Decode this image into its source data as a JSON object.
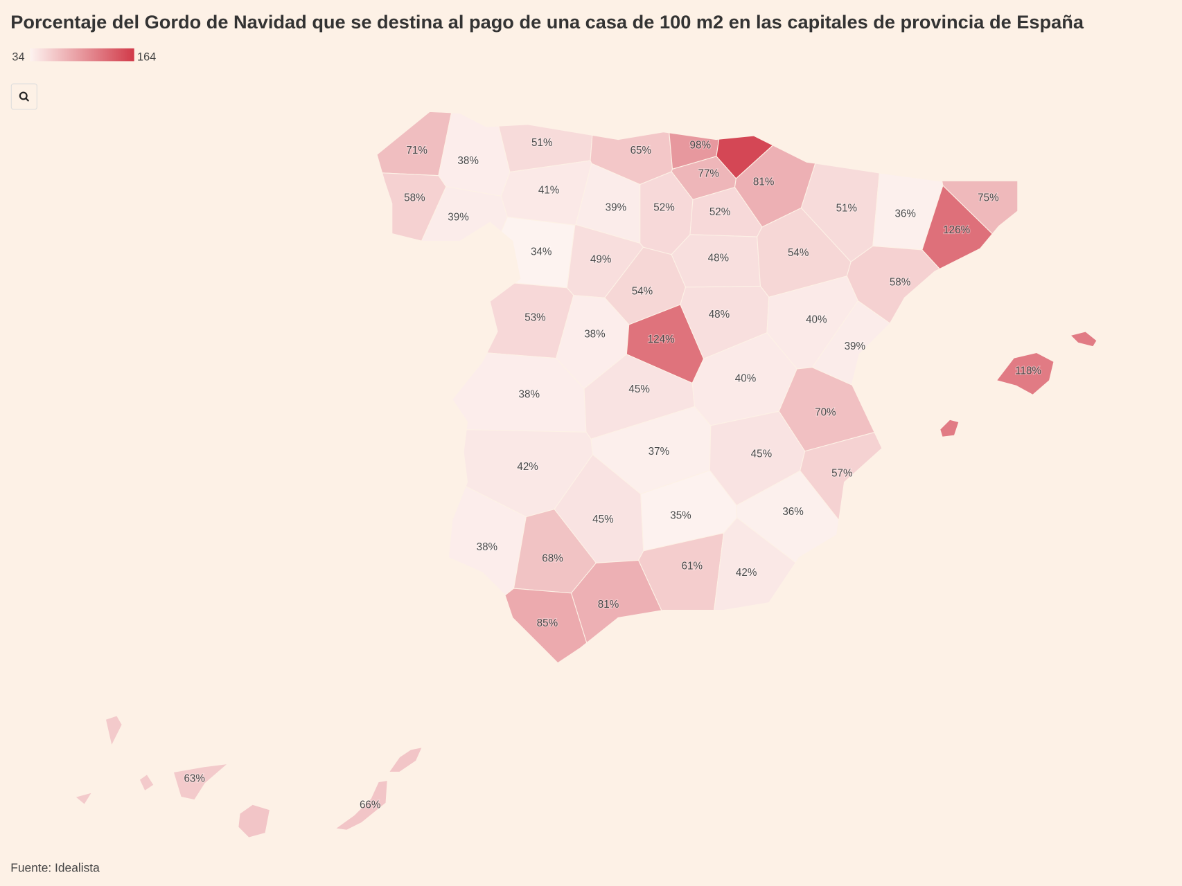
{
  "chart_data": {
    "type": "choropleth",
    "title": "Porcentaje del Gordo de Navidad que se destina al pago de una casa de 100 m2 en las capitales de provincia de España",
    "source": "Fuente: Idealista",
    "colorscale": {
      "range": [
        34,
        164
      ],
      "colors": [
        "#fdf3f0",
        "#d13a49"
      ]
    },
    "values": [
      71,
      38,
      51,
      65,
      98,
      155,
      77,
      81,
      58,
      39,
      41,
      39,
      52,
      52,
      51,
      36,
      75,
      126,
      34,
      49,
      48,
      54,
      58,
      54,
      53,
      38,
      124,
      48,
      40,
      39,
      118,
      38,
      45,
      40,
      70,
      37,
      45,
      57,
      42,
      45,
      35,
      36,
      38,
      68,
      61,
      42,
      81,
      85,
      63,
      66
    ],
    "value_labels": [
      "71%",
      "38%",
      "51%",
      "65%",
      "98%",
      null,
      "77%",
      "81%",
      "58%",
      "39%",
      "41%",
      "39%",
      "52%",
      "52%",
      "51%",
      "36%",
      "75%",
      "126%",
      "34%",
      "49%",
      "48%",
      "54%",
      "58%",
      "54%",
      "53%",
      "38%",
      "124%",
      "48%",
      "40%",
      "39%",
      "118%",
      "38%",
      "45%",
      "40%",
      "70%",
      "37%",
      "45%",
      "57%",
      "42%",
      "45%",
      "35%",
      "36%",
      "38%",
      "68%",
      "61%",
      "42%",
      "81%",
      "85%",
      "63%",
      "66%"
    ]
  }
}
